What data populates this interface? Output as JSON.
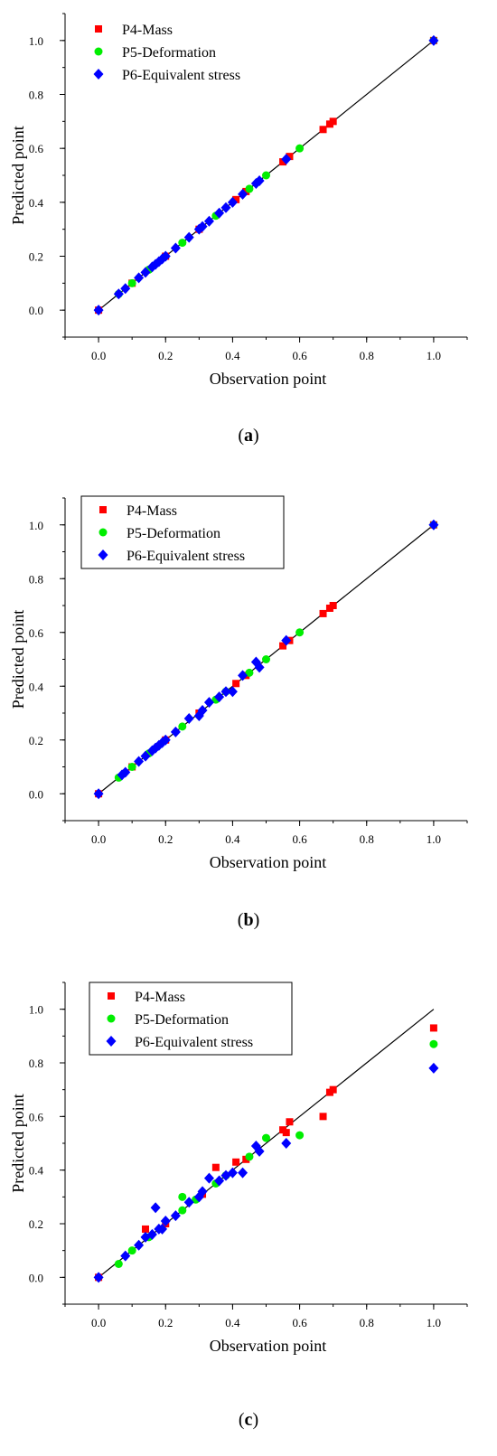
{
  "chart_data": [
    {
      "type": "scatter",
      "caption": "(a)",
      "caption_letter": "a",
      "xlabel": "Observation point",
      "ylabel": "Predicted point",
      "xlim": [
        -0.1,
        1.1
      ],
      "ylim": [
        -0.1,
        1.1
      ],
      "xticks": [
        "0.0",
        "0.2",
        "0.4",
        "0.6",
        "0.8",
        "1.0"
      ],
      "yticks": [
        "0.0",
        "0.2",
        "0.4",
        "0.6",
        "0.8",
        "1.0"
      ],
      "reference_line": [
        [
          0,
          0
        ],
        [
          1,
          1
        ]
      ],
      "legend_position": "top-left",
      "series": [
        {
          "name": "P4-Mass",
          "marker": "square",
          "color": "#ff0000",
          "points": [
            [
              0,
              0
            ],
            [
              0.1,
              0.1
            ],
            [
              0.2,
              0.2
            ],
            [
              0.3,
              0.3
            ],
            [
              0.41,
              0.41
            ],
            [
              0.44,
              0.44
            ],
            [
              0.55,
              0.55
            ],
            [
              0.57,
              0.57
            ],
            [
              0.67,
              0.67
            ],
            [
              0.69,
              0.69
            ],
            [
              0.7,
              0.7
            ],
            [
              1.0,
              1.0
            ]
          ]
        },
        {
          "name": "P5-Deformation",
          "marker": "circle",
          "color": "#00ee00",
          "points": [
            [
              0.06,
              0.06
            ],
            [
              0.1,
              0.1
            ],
            [
              0.15,
              0.15
            ],
            [
              0.25,
              0.25
            ],
            [
              0.35,
              0.35
            ],
            [
              0.45,
              0.45
            ],
            [
              0.5,
              0.5
            ],
            [
              0.6,
              0.6
            ],
            [
              1.0,
              1.0
            ]
          ]
        },
        {
          "name": "P6-Equivalent stress",
          "marker": "diamond",
          "color": "#0000ff",
          "points": [
            [
              0,
              0
            ],
            [
              0.06,
              0.06
            ],
            [
              0.08,
              0.08
            ],
            [
              0.12,
              0.12
            ],
            [
              0.14,
              0.14
            ],
            [
              0.16,
              0.16
            ],
            [
              0.17,
              0.17
            ],
            [
              0.18,
              0.18
            ],
            [
              0.19,
              0.19
            ],
            [
              0.2,
              0.2
            ],
            [
              0.23,
              0.23
            ],
            [
              0.27,
              0.27
            ],
            [
              0.3,
              0.3
            ],
            [
              0.31,
              0.31
            ],
            [
              0.33,
              0.33
            ],
            [
              0.36,
              0.36
            ],
            [
              0.38,
              0.38
            ],
            [
              0.4,
              0.4
            ],
            [
              0.43,
              0.43
            ],
            [
              0.47,
              0.47
            ],
            [
              0.48,
              0.48
            ],
            [
              0.56,
              0.56
            ],
            [
              1.0,
              1.0
            ]
          ]
        }
      ]
    },
    {
      "type": "scatter",
      "caption": "(b)",
      "caption_letter": "b",
      "xlabel": "Observation point",
      "ylabel": "Predicted point",
      "xlim": [
        -0.1,
        1.1
      ],
      "ylim": [
        -0.1,
        1.1
      ],
      "xticks": [
        "0.0",
        "0.2",
        "0.4",
        "0.6",
        "0.8",
        "1.0"
      ],
      "yticks": [
        "0.0",
        "0.2",
        "0.4",
        "0.6",
        "0.8",
        "1.0"
      ],
      "reference_line": [
        [
          0,
          0
        ],
        [
          1,
          1
        ]
      ],
      "legend_position": "top-left",
      "series": [
        {
          "name": "P4-Mass",
          "marker": "square",
          "color": "#ff0000",
          "points": [
            [
              0,
              0
            ],
            [
              0.1,
              0.1
            ],
            [
              0.2,
              0.2
            ],
            [
              0.3,
              0.3
            ],
            [
              0.41,
              0.41
            ],
            [
              0.44,
              0.44
            ],
            [
              0.55,
              0.55
            ],
            [
              0.57,
              0.57
            ],
            [
              0.67,
              0.67
            ],
            [
              0.69,
              0.69
            ],
            [
              0.7,
              0.7
            ],
            [
              1.0,
              1.0
            ]
          ]
        },
        {
          "name": "P5-Deformation",
          "marker": "circle",
          "color": "#00ee00",
          "points": [
            [
              0.06,
              0.06
            ],
            [
              0.1,
              0.1
            ],
            [
              0.15,
              0.15
            ],
            [
              0.25,
              0.25
            ],
            [
              0.35,
              0.35
            ],
            [
              0.38,
              0.38
            ],
            [
              0.45,
              0.45
            ],
            [
              0.5,
              0.5
            ],
            [
              0.6,
              0.6
            ],
            [
              1.0,
              1.0
            ]
          ]
        },
        {
          "name": "P6-Equivalent stress",
          "marker": "diamond",
          "color": "#0000ff",
          "points": [
            [
              0,
              0
            ],
            [
              0.07,
              0.07
            ],
            [
              0.08,
              0.08
            ],
            [
              0.12,
              0.12
            ],
            [
              0.14,
              0.14
            ],
            [
              0.16,
              0.16
            ],
            [
              0.17,
              0.17
            ],
            [
              0.18,
              0.18
            ],
            [
              0.19,
              0.19
            ],
            [
              0.2,
              0.2
            ],
            [
              0.23,
              0.23
            ],
            [
              0.27,
              0.28
            ],
            [
              0.3,
              0.29
            ],
            [
              0.31,
              0.31
            ],
            [
              0.33,
              0.34
            ],
            [
              0.36,
              0.36
            ],
            [
              0.38,
              0.38
            ],
            [
              0.4,
              0.38
            ],
            [
              0.43,
              0.44
            ],
            [
              0.47,
              0.49
            ],
            [
              0.48,
              0.47
            ],
            [
              0.56,
              0.57
            ],
            [
              1.0,
              1.0
            ]
          ]
        }
      ]
    },
    {
      "type": "scatter",
      "caption": "(c)",
      "caption_letter": "c",
      "xlabel": "Observation point",
      "ylabel": "Predicted point",
      "xlim": [
        -0.1,
        1.1
      ],
      "ylim": [
        -0.1,
        1.1
      ],
      "xticks": [
        "0.0",
        "0.2",
        "0.4",
        "0.6",
        "0.8",
        "1.0"
      ],
      "yticks": [
        "0.0",
        "0.2",
        "0.4",
        "0.6",
        "0.8",
        "1.0"
      ],
      "reference_line": [
        [
          0,
          0
        ],
        [
          1,
          1
        ]
      ],
      "legend_position": "top-left",
      "series": [
        {
          "name": "P4-Mass",
          "marker": "square",
          "color": "#ff0000",
          "points": [
            [
              0,
              0
            ],
            [
              0.14,
              0.18
            ],
            [
              0.2,
              0.2
            ],
            [
              0.31,
              0.31
            ],
            [
              0.35,
              0.41
            ],
            [
              0.41,
              0.43
            ],
            [
              0.44,
              0.44
            ],
            [
              0.55,
              0.55
            ],
            [
              0.56,
              0.54
            ],
            [
              0.57,
              0.58
            ],
            [
              0.67,
              0.6
            ],
            [
              0.69,
              0.69
            ],
            [
              0.7,
              0.7
            ],
            [
              1.0,
              0.93
            ]
          ]
        },
        {
          "name": "P5-Deformation",
          "marker": "circle",
          "color": "#00ee00",
          "points": [
            [
              0.06,
              0.05
            ],
            [
              0.1,
              0.1
            ],
            [
              0.15,
              0.15
            ],
            [
              0.25,
              0.3
            ],
            [
              0.25,
              0.25
            ],
            [
              0.29,
              0.29
            ],
            [
              0.35,
              0.35
            ],
            [
              0.38,
              0.38
            ],
            [
              0.45,
              0.45
            ],
            [
              0.5,
              0.52
            ],
            [
              0.6,
              0.53
            ],
            [
              1.0,
              0.87
            ]
          ]
        },
        {
          "name": "P6-Equivalent stress",
          "marker": "diamond",
          "color": "#0000ff",
          "points": [
            [
              0,
              0
            ],
            [
              0.08,
              0.08
            ],
            [
              0.12,
              0.12
            ],
            [
              0.14,
              0.15
            ],
            [
              0.16,
              0.16
            ],
            [
              0.17,
              0.26
            ],
            [
              0.18,
              0.18
            ],
            [
              0.19,
              0.18
            ],
            [
              0.2,
              0.21
            ],
            [
              0.23,
              0.23
            ],
            [
              0.27,
              0.28
            ],
            [
              0.3,
              0.3
            ],
            [
              0.31,
              0.32
            ],
            [
              0.33,
              0.37
            ],
            [
              0.36,
              0.36
            ],
            [
              0.38,
              0.38
            ],
            [
              0.4,
              0.39
            ],
            [
              0.43,
              0.39
            ],
            [
              0.47,
              0.49
            ],
            [
              0.48,
              0.47
            ],
            [
              0.56,
              0.5
            ],
            [
              1.0,
              0.78
            ]
          ]
        }
      ]
    }
  ]
}
